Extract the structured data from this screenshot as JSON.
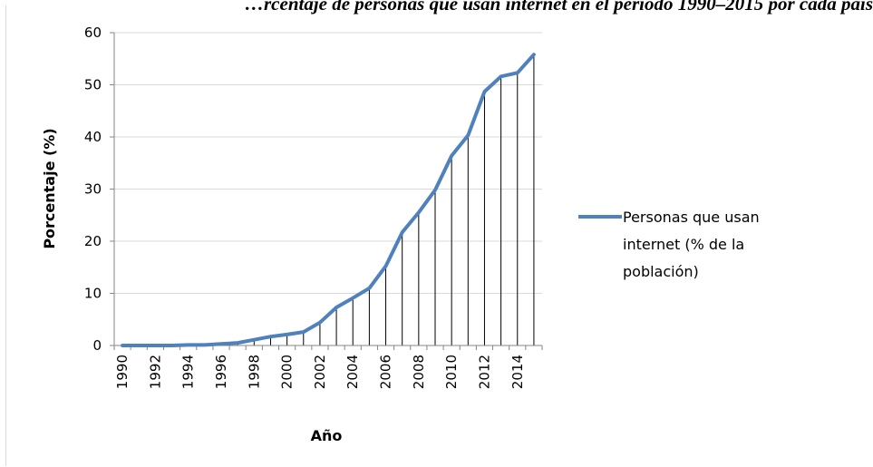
{
  "header_text": "…rcentaje de personas que usan internet en el período 1990–2015 por cada país",
  "chart_data": {
    "type": "line",
    "title": "",
    "xlabel": "Año",
    "ylabel": "Porcentaje (%)",
    "ylim": [
      0,
      60
    ],
    "yticks": [
      0,
      10,
      20,
      30,
      40,
      50,
      60
    ],
    "x": [
      1990,
      1991,
      1992,
      1993,
      1994,
      1995,
      1996,
      1997,
      1998,
      1999,
      2000,
      2001,
      2002,
      2003,
      2004,
      2005,
      2006,
      2007,
      2008,
      2009,
      2010,
      2011,
      2012,
      2013,
      2014,
      2015
    ],
    "x_tick_labels": [
      "1990",
      "1992",
      "1994",
      "1996",
      "1998",
      "2000",
      "2002",
      "2004",
      "2006",
      "2008",
      "2010",
      "2012",
      "2014"
    ],
    "grid": "horizontal",
    "drop_lines": true,
    "legend_position": "right",
    "series_color": "#4f81bd",
    "series": [
      {
        "name": "Personas que usan internet (% de la población)",
        "legend_lines": [
          "Personas que usan",
          "internet (% de la",
          "población)"
        ],
        "values": [
          0.0,
          0.0,
          0.0,
          0.0,
          0.1,
          0.1,
          0.3,
          0.5,
          1.1,
          1.7,
          2.1,
          2.6,
          4.4,
          7.3,
          9.1,
          11.0,
          15.2,
          21.7,
          25.5,
          29.8,
          36.4,
          40.3,
          48.7,
          51.6,
          52.3,
          55.8
        ]
      }
    ]
  }
}
